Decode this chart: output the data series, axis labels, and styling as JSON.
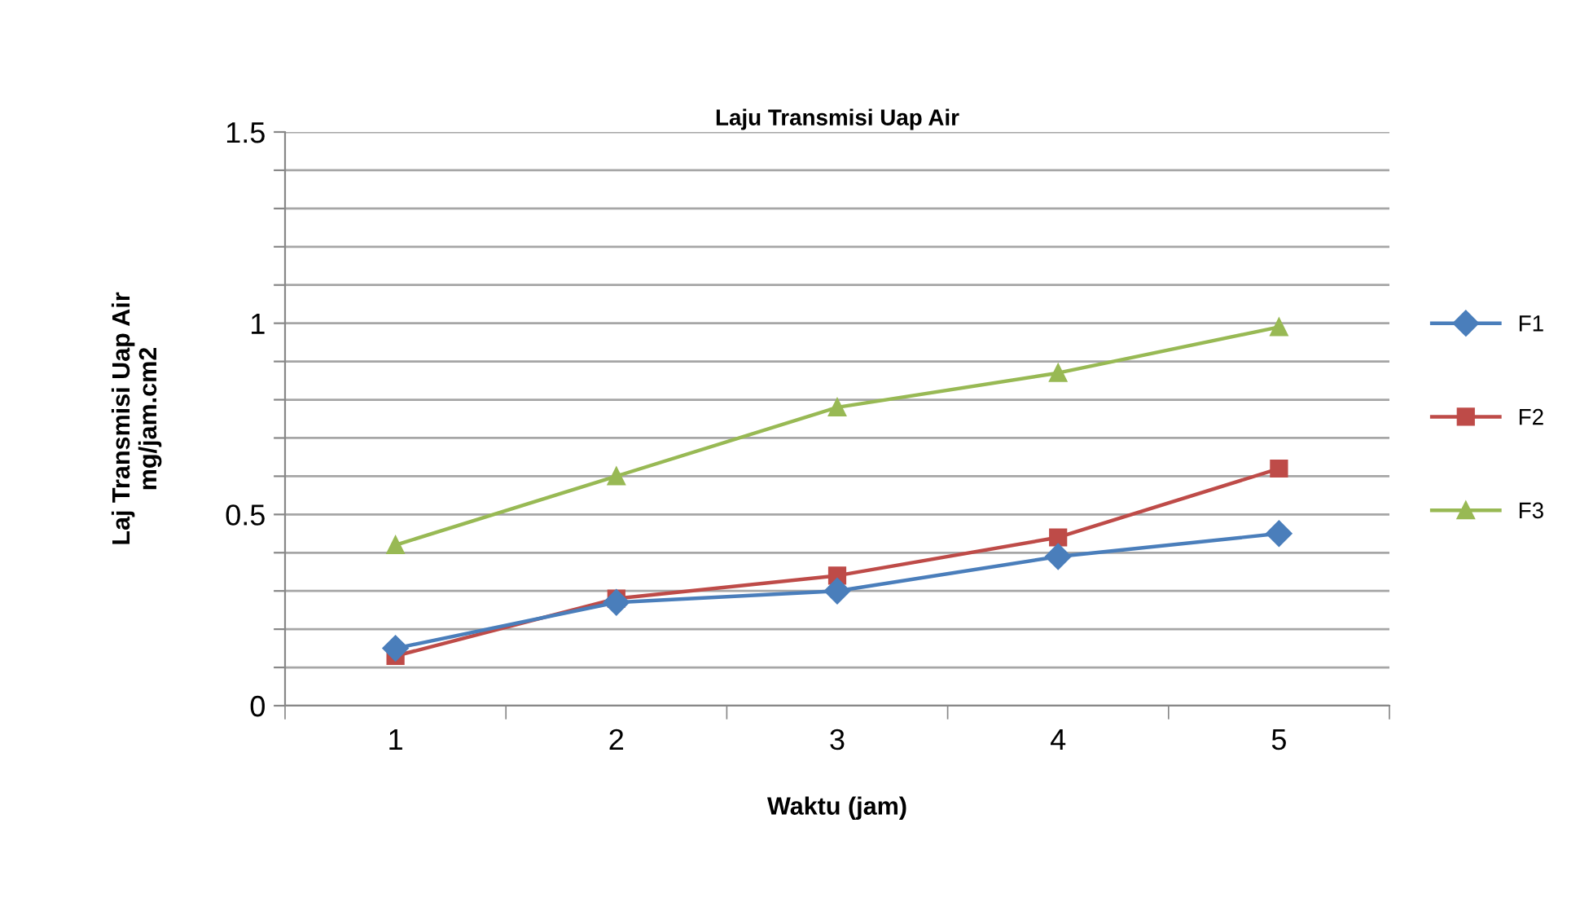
{
  "chart_data": {
    "type": "line",
    "title": "Laju Transmisi Uap Air",
    "xlabel": "Waktu (jam)",
    "ylabel": "Laj Transmisi Uap Air\nmg/jam.cm2",
    "categories": [
      "1",
      "2",
      "3",
      "4",
      "5"
    ],
    "series": [
      {
        "name": "F1",
        "color": "#4a7ebb",
        "marker": "diamond",
        "values": [
          0.15,
          0.27,
          0.3,
          0.39,
          0.45
        ]
      },
      {
        "name": "F2",
        "color": "#be4b48",
        "marker": "square",
        "values": [
          0.13,
          0.28,
          0.34,
          0.44,
          0.62
        ]
      },
      {
        "name": "F3",
        "color": "#98b954",
        "marker": "triangle",
        "values": [
          0.42,
          0.6,
          0.78,
          0.87,
          0.99
        ]
      }
    ],
    "ylim": [
      0,
      1.5
    ],
    "yticks": [
      0,
      {
        "value": 0.1,
        "label": null
      },
      {
        "value": 0.2,
        "label": null
      },
      {
        "value": 0.3,
        "label": null
      },
      {
        "value": 0.4,
        "label": null
      },
      0.5,
      {
        "value": 0.6,
        "label": null
      },
      {
        "value": 0.7,
        "label": null
      },
      {
        "value": 0.8,
        "label": null
      },
      {
        "value": 0.9,
        "label": null
      },
      1,
      {
        "value": 1.1,
        "label": null
      },
      {
        "value": 1.2,
        "label": null
      },
      {
        "value": 1.3,
        "label": null
      },
      {
        "value": 1.4,
        "label": null
      },
      1.5
    ],
    "grid": "y",
    "legend": "right",
    "line_style": "solid"
  }
}
